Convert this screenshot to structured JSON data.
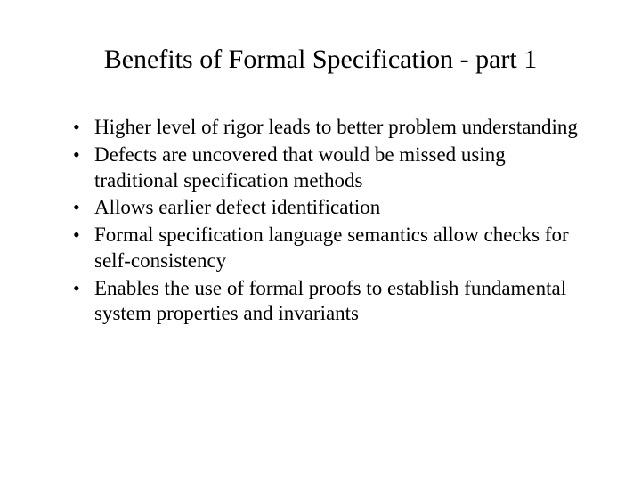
{
  "slide": {
    "title": "Benefits of Formal Specification - part 1",
    "bullets": [
      "Higher level of rigor leads to better problem understanding",
      "Defects are uncovered that would be missed using traditional specification methods",
      "Allows earlier defect identification",
      "Formal specification language semantics allow checks for self-consistency",
      "Enables the use of formal proofs to establish fundamental system properties and invariants"
    ],
    "title_fontsize": 30,
    "body_fontsize": 23,
    "font_family": "Times New Roman",
    "text_color": "#000000",
    "background_color": "#ffffff"
  }
}
